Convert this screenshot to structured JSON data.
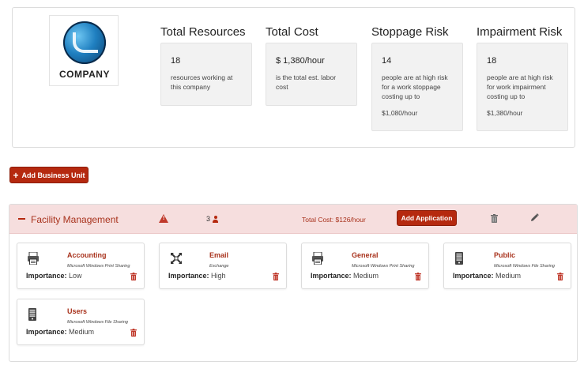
{
  "company": {
    "logo_text": "COMPANY"
  },
  "stats": [
    {
      "title": "Total Resources",
      "value": "18",
      "desc": "resources working at this company",
      "extra": ""
    },
    {
      "title": "Total Cost",
      "value": "$ 1,380/hour",
      "desc": "is the total est. labor cost",
      "extra": ""
    },
    {
      "title": "Stoppage Risk",
      "value": "14",
      "desc": "people are at high risk for a work stoppage costing up to",
      "extra": "$1,080/hour"
    },
    {
      "title": "Impairment Risk",
      "value": "18",
      "desc": "people are at high risk for work impairment costing up to",
      "extra": "$1,380/hour"
    }
  ],
  "add_business_unit_label": "Add Business Unit",
  "business_unit": {
    "name": "Facility Management",
    "resource_count": "3",
    "total_cost": "Total Cost: $126/hour",
    "add_application_label": "Add Application"
  },
  "importance_label": "Importance:",
  "applications": [
    {
      "name": "Accounting",
      "desc": "Microsoft Windows Print Sharing",
      "importance": "Low",
      "icon": "printer-icon"
    },
    {
      "name": "Email",
      "desc": "Exchange",
      "importance": "High",
      "icon": "exchange-icon"
    },
    {
      "name": "General",
      "desc": "Microsoft Windows Print Sharing",
      "importance": "Medium",
      "icon": "printer-icon"
    },
    {
      "name": "Public",
      "desc": "Microsoft Windows File Sharing",
      "importance": "Medium",
      "icon": "file-server-icon"
    },
    {
      "name": "Users",
      "desc": "Microsoft Windows File Sharing",
      "importance": "Medium",
      "icon": "file-server-icon"
    }
  ],
  "colors": {
    "accent": "#b5290f",
    "header_bg": "#f6dede",
    "stat_bg": "#f2f2f2"
  }
}
